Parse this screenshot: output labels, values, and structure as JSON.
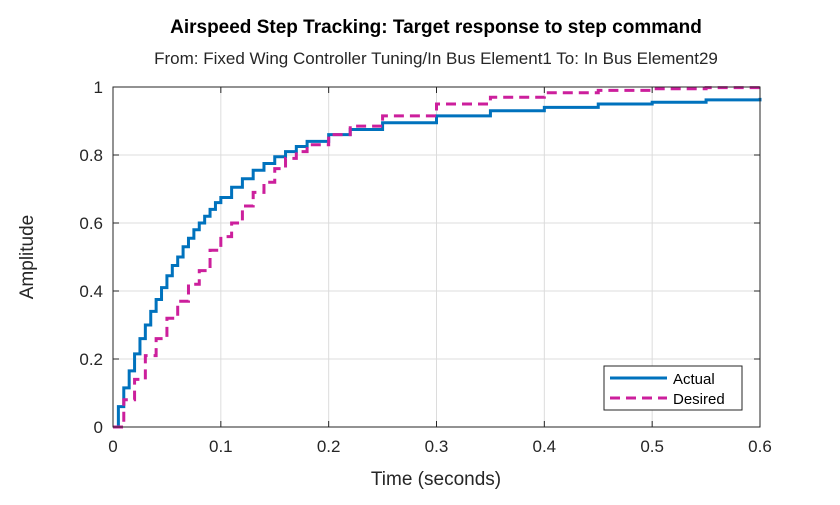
{
  "chart_data": {
    "type": "line",
    "title": "Airspeed Step Tracking: Target response to step command",
    "subtitle": "From: Fixed Wing Controller Tuning/In Bus Element1  To: In Bus Element29",
    "xlabel": "Time (seconds)",
    "ylabel": "Amplitude",
    "xlim": [
      0,
      0.6
    ],
    "ylim": [
      0,
      1
    ],
    "xticks": [
      "0",
      "0.1",
      "0.2",
      "0.3",
      "0.4",
      "0.5",
      "0.6"
    ],
    "yticks": [
      "0",
      "0.2",
      "0.4",
      "0.6",
      "0.8",
      "1"
    ],
    "grid": true,
    "legend_location": "bottom-right",
    "reference_line": 1,
    "series": [
      {
        "name": "Actual",
        "color": "#0072BD",
        "style": "solid-staircase",
        "x": [
          0,
          0.005,
          0.01,
          0.015,
          0.02,
          0.025,
          0.03,
          0.035,
          0.04,
          0.045,
          0.05,
          0.055,
          0.06,
          0.065,
          0.07,
          0.075,
          0.08,
          0.085,
          0.09,
          0.095,
          0.1,
          0.11,
          0.12,
          0.13,
          0.14,
          0.15,
          0.16,
          0.17,
          0.18,
          0.2,
          0.22,
          0.25,
          0.3,
          0.35,
          0.4,
          0.45,
          0.5,
          0.55,
          0.6
        ],
        "y": [
          0,
          0.06,
          0.115,
          0.165,
          0.215,
          0.26,
          0.3,
          0.34,
          0.375,
          0.41,
          0.445,
          0.475,
          0.5,
          0.53,
          0.555,
          0.58,
          0.6,
          0.62,
          0.64,
          0.66,
          0.675,
          0.705,
          0.73,
          0.755,
          0.775,
          0.795,
          0.81,
          0.825,
          0.84,
          0.86,
          0.875,
          0.895,
          0.915,
          0.93,
          0.94,
          0.95,
          0.955,
          0.962,
          0.968
        ]
      },
      {
        "name": "Desired",
        "color": "#CC1F9C",
        "style": "dashed-staircase",
        "x": [
          0,
          0.01,
          0.02,
          0.03,
          0.04,
          0.05,
          0.06,
          0.07,
          0.08,
          0.09,
          0.1,
          0.11,
          0.12,
          0.13,
          0.14,
          0.15,
          0.16,
          0.17,
          0.18,
          0.2,
          0.22,
          0.25,
          0.3,
          0.35,
          0.4,
          0.45,
          0.5,
          0.55,
          0.6
        ],
        "y": [
          0,
          0.08,
          0.14,
          0.21,
          0.26,
          0.32,
          0.37,
          0.42,
          0.46,
          0.52,
          0.56,
          0.6,
          0.65,
          0.69,
          0.72,
          0.76,
          0.79,
          0.81,
          0.83,
          0.86,
          0.885,
          0.915,
          0.95,
          0.97,
          0.983,
          0.99,
          0.995,
          0.998,
          1.0
        ]
      }
    ]
  }
}
